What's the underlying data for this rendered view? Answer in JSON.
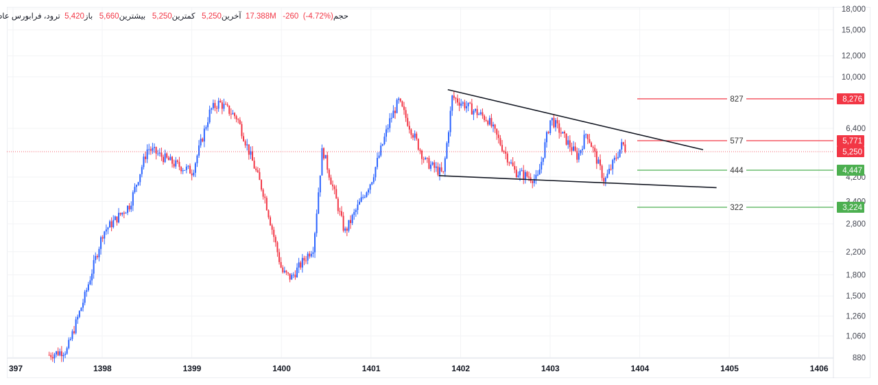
{
  "legend": {
    "title": "باز  ترود، فرابورس عادی",
    "open_label": "باز",
    "open": "5,420",
    "high_label": "بیشترین",
    "high": "5,660",
    "low_label": "کمترین",
    "low": "5,250",
    "close_label": "آخرین",
    "close": "5,250",
    "change": "-260",
    "change_pct": "(-4.72%)",
    "volume_label": "حجم",
    "volume": "17.388M",
    "symbol": "ترود، فرابورس عادی"
  },
  "colors": {
    "up": "#2962ff",
    "down": "#f23645",
    "resistance": "#f23645",
    "support": "#4caf50",
    "trendline": "#131722",
    "grid": "#f2f3f5",
    "last_price_line": "#f23645"
  },
  "levels": [
    {
      "label": "827",
      "price": "8,276",
      "type": "resistance",
      "y": 144
    },
    {
      "label": "577",
      "price": "5,771",
      "type": "resistance",
      "y": 205
    },
    {
      "label": "444",
      "price": "4,447",
      "type": "support",
      "y": 248
    },
    {
      "label": "322",
      "price": "3,224",
      "type": "support",
      "y": 302
    }
  ],
  "last_price": {
    "price": "5,250",
    "y": 221
  },
  "chart_data": {
    "type": "candlestick",
    "title": "ترود، فرابورس عادی",
    "xlabel": "",
    "ylabel": "",
    "scale": "log",
    "ylim": [
      860,
      18500
    ],
    "x_ticks": [
      "397",
      "1398",
      "1399",
      "1400",
      "1401",
      "1402",
      "1403",
      "1404",
      "1405",
      "1406"
    ],
    "y_ticks": [
      "18,000",
      "15,000",
      "12,000",
      "10,000",
      "6,400",
      "4,200",
      "3,400",
      "2,800",
      "2,200",
      "1,800",
      "1,500",
      "1,260",
      "1,060",
      "880"
    ],
    "price_badges": [
      "8,276",
      "5,771",
      "5,250",
      "4,447",
      "3,224"
    ],
    "horizontal_levels": [
      {
        "label": "827",
        "value": 8276
      },
      {
        "label": "577",
        "value": 5771
      },
      {
        "label": "444",
        "value": 4447
      },
      {
        "label": "322",
        "value": 3224
      }
    ],
    "trendlines": [
      {
        "name": "upper",
        "from": {
          "x": "1401.85",
          "y": 8950
        },
        "to": {
          "x": "1404.7",
          "y": 5320
        }
      },
      {
        "name": "lower",
        "from": {
          "x": "1401.75",
          "y": 4250
        },
        "to": {
          "x": "1404.85",
          "y": 3830
        }
      }
    ],
    "approx_path": [
      {
        "x": "1397.4",
        "close": 900
      },
      {
        "x": "1397.6",
        "close": 940
      },
      {
        "x": "1397.8",
        "close": 1500
      },
      {
        "x": "1398.0",
        "close": 2600
      },
      {
        "x": "1398.3",
        "close": 3300
      },
      {
        "x": "1398.5",
        "close": 5400
      },
      {
        "x": "1398.8",
        "close": 4700
      },
      {
        "x": "1399.0",
        "close": 4400
      },
      {
        "x": "1399.2",
        "close": 7500
      },
      {
        "x": "1399.3",
        "close": 8000
      },
      {
        "x": "1399.5",
        "close": 7000
      },
      {
        "x": "1399.8",
        "close": 3600
      },
      {
        "x": "1400.0",
        "close": 1850
      },
      {
        "x": "1400.1",
        "close": 1750
      },
      {
        "x": "1400.35",
        "close": 2300
      },
      {
        "x": "1400.45",
        "close": 5400
      },
      {
        "x": "1400.7",
        "close": 2600
      },
      {
        "x": "1401.0",
        "close": 4100
      },
      {
        "x": "1401.2",
        "close": 6800
      },
      {
        "x": "1401.3",
        "close": 8100
      },
      {
        "x": "1401.6",
        "close": 4800
      },
      {
        "x": "1401.8",
        "close": 4300
      },
      {
        "x": "1401.9",
        "close": 8400
      },
      {
        "x": "1402.3",
        "close": 6900
      },
      {
        "x": "1402.6",
        "close": 4400
      },
      {
        "x": "1402.85",
        "close": 4100
      },
      {
        "x": "1403.0",
        "close": 7000
      },
      {
        "x": "1403.3",
        "close": 5000
      },
      {
        "x": "1403.4",
        "close": 6200
      },
      {
        "x": "1403.6",
        "close": 4050
      },
      {
        "x": "1403.8",
        "close": 5600
      },
      {
        "x": "1403.85",
        "close": 5250
      }
    ]
  }
}
